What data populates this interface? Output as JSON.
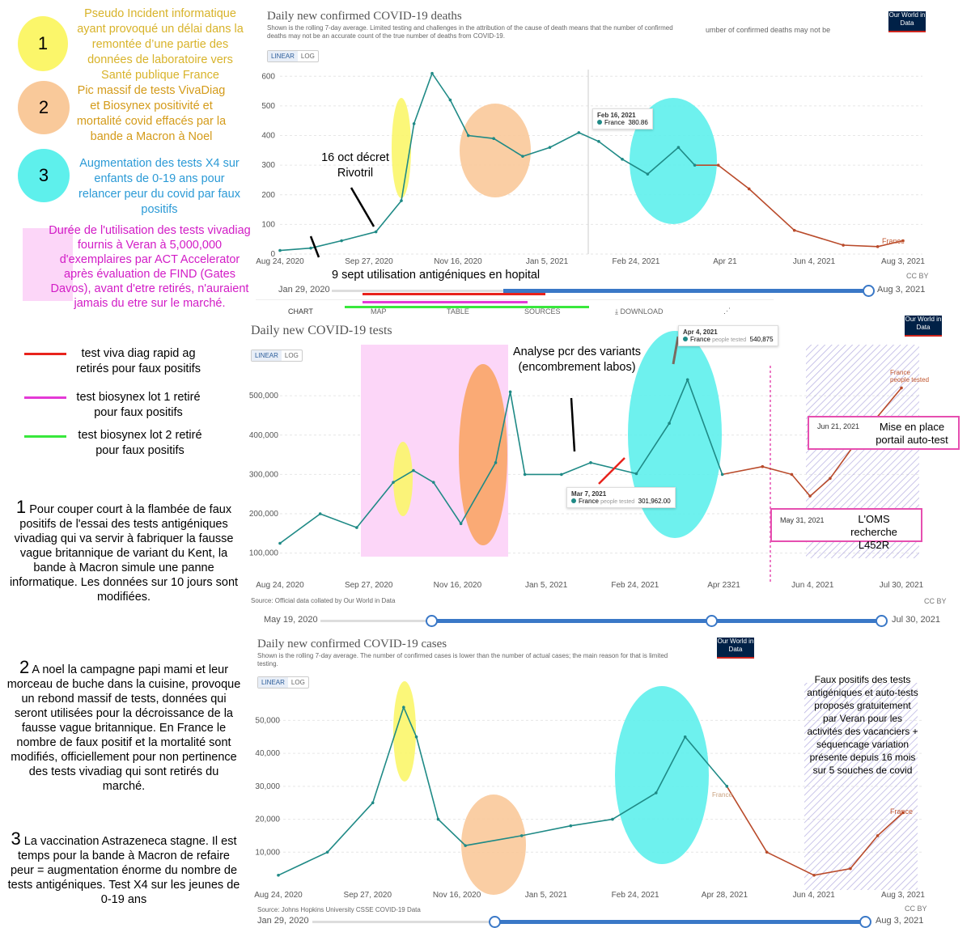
{
  "legend": {
    "items": [
      {
        "num": "1",
        "color": "#fbf66a",
        "text_color": "#d49b1a",
        "text": "Pseudo Incident informatique ayant provoqué un délai dans la remontée d’une partie des données de laboratoire vers Santé publique France"
      },
      {
        "num": "2",
        "color": "#f9c99a",
        "text_color": "#d49b1a",
        "text": "Pic massif de tests VivaDiag et Biosynex positivité et mortalité covid effacés par la bande a Macron à Noel"
      },
      {
        "num": "3",
        "color": "#5ef0ec",
        "text_color": "#2b9ad6",
        "text": "Augmentation des tests X4 sur enfants de 0-19 ans pour relancer peur du covid par faux positifs"
      }
    ],
    "pink_text": "Durée de l'utilisation des tests vivadiag fournis à Veran à 5,000,000 d'exemplaires par ACT Accelerator après évaluation de FIND (Gates Davos), avant d'etre retirés, n'auraient jamais du etre sur le marché.",
    "lines": [
      {
        "color": "#e8231c",
        "text": "test viva diag rapid ag retirés pour faux positifs"
      },
      {
        "color": "#e43ad6",
        "text": "test biosynex lot 1 retiré pour faux positifs"
      },
      {
        "color": "#39e83c",
        "text": "test biosynex lot 2 retiré pour faux positifs"
      }
    ]
  },
  "paragraphs": [
    {
      "num": "1",
      "text": "Pour couper court à la flambée de faux positifs de l'essai des tests antigéniques vivadiag qui va servir à fabriquer la fausse vague britannique de variant du Kent, la bande à Macron simule une panne informatique. Les données sur 10 jours sont modifiées."
    },
    {
      "num": "2",
      "text": "A noel la campagne papi mami et leur morceau de buche dans la cuisine, provoque un rebond massif de tests, données qui seront utilisées pour la décroissance de la fausse vague britannique. En France le nombre de faux positif et la mortalité sont modifiés, officiellement pour non pertinence des tests vivadiag qui sont retirés du marché."
    },
    {
      "num": "3",
      "text": "La vaccination Astrazeneca stagne. Il est temps pour la bande à Macron de refaire peur = augmentation énorme du nombre de tests antigéniques. Test X4 sur les jeunes de 0-19 ans"
    }
  ],
  "logo": "Our World in Data",
  "ui": {
    "linear": "LINEAR",
    "log": "LOG",
    "chart_tab": "CHART",
    "map_tab": "MAP",
    "table_tab": "TABLE",
    "sources_tab": "SOURCES",
    "download": "DOWNLOAD",
    "cc": "CC BY"
  },
  "chart_data": [
    {
      "type": "line",
      "title": "Daily new confirmed COVID-19 deaths",
      "subtitle": "Shown is the rolling 7-day average. Limited testing and challenges in the attribution of the cause of death means that the number of confirmed deaths may not be an accurate count of the true number of deaths from COVID-19.",
      "subtitle_overflow": "umber of confirmed deaths may not be",
      "series": [
        {
          "name": "France",
          "x": [
            "2020-08-24",
            "2020-09-10",
            "2020-09-27",
            "2020-10-16",
            "2020-10-30",
            "2020-11-06",
            "2020-11-16",
            "2020-11-26",
            "2020-12-06",
            "2020-12-20",
            "2021-01-05",
            "2021-01-20",
            "2021-02-05",
            "2021-02-16",
            "2021-03-01",
            "2021-03-15",
            "2021-04-01",
            "2021-04-10",
            "2021-04-23",
            "2021-05-10",
            "2021-06-04",
            "2021-07-01",
            "2021-07-20",
            "2021-08-03"
          ],
          "values": [
            12,
            20,
            45,
            75,
            180,
            440,
            610,
            520,
            400,
            390,
            330,
            360,
            410,
            380,
            320,
            270,
            360,
            300,
            300,
            220,
            80,
            30,
            25,
            45
          ]
        }
      ],
      "xticks": [
        "Aug 24, 2020",
        "Sep 27, 2020",
        "Nov 16, 2020",
        "Jan 5, 2021",
        "Feb 24, 2021",
        "Apr 21",
        "Jun 4, 2021",
        "Aug 3, 2021"
      ],
      "yticks": [
        "0",
        "100",
        "200",
        "300",
        "400",
        "500",
        "600"
      ],
      "ylim": [
        0,
        650
      ],
      "tooltip": {
        "date": "Feb 16, 2021",
        "label": "France",
        "value": "380.86"
      },
      "annotations": [
        "16 oct décret Rivotril",
        "9 sept utilisation antigéniques en hopital"
      ],
      "scrubber": {
        "start": "Jan 29, 2020",
        "end": "Aug 3, 2021"
      }
    },
    {
      "type": "line",
      "title": "Daily new COVID-19 tests",
      "source": "Source: Official data collated by Our World in Data",
      "series": [
        {
          "name": "France",
          "x": [
            "2020-08-24",
            "2020-09-15",
            "2020-10-05",
            "2020-10-25",
            "2020-11-05",
            "2020-11-16",
            "2020-12-01",
            "2020-12-20",
            "2020-12-28",
            "2021-01-05",
            "2021-01-25",
            "2021-02-10",
            "2021-03-07",
            "2021-03-25",
            "2021-04-04",
            "2021-04-23",
            "2021-05-15",
            "2021-05-31",
            "2021-06-10",
            "2021-06-21",
            "2021-07-05",
            "2021-07-30"
          ],
          "values": [
            125000,
            200000,
            165000,
            280000,
            310000,
            280000,
            175000,
            330000,
            510000,
            300000,
            300000,
            330000,
            301962,
            430000,
            540875,
            300000,
            320000,
            300000,
            245000,
            290000,
            380000,
            520000
          ]
        }
      ],
      "xticks": [
        "Aug 24, 2020",
        "Sep 27, 2020",
        "Nov 16, 2020",
        "Jan 5, 2021",
        "Feb 24, 2021",
        "Apr 2321",
        "Jun 4, 2021",
        "Jul 30, 2021"
      ],
      "yticks": [
        "100,000",
        "200,000",
        "300,000",
        "400,000",
        "500,000"
      ],
      "ylim": [
        50000,
        560000
      ],
      "tooltips": [
        {
          "date": "Apr 4, 2021",
          "label": "France",
          "sub": "people tested",
          "value": "540,875"
        },
        {
          "date": "Mar 7, 2021",
          "label": "France",
          "sub": "people tested",
          "value": "301,962.00"
        }
      ],
      "annotations": [
        "Analyse pcr des variants (encombrement labos)",
        "Mise en place portail auto-test",
        "L'OMS recherche L452R"
      ],
      "box_dates": [
        "Jun 21, 2021",
        "May 31, 2021"
      ],
      "end_label": "France",
      "end_sub": "people tested",
      "scrubber": {
        "start": "May 19, 2020",
        "end": "Jul 30, 2021"
      }
    },
    {
      "type": "line",
      "title": "Daily new confirmed COVID-19 cases",
      "subtitle": "Shown is the rolling 7-day average. The number of confirmed cases is lower than the number of actual cases; the main reason for that is limited testing.",
      "source": "Source: Johns Hopkins University CSSE COVID-19 Data",
      "series": [
        {
          "name": "France",
          "x": [
            "2020-08-24",
            "2020-09-20",
            "2020-10-15",
            "2020-11-01",
            "2020-11-08",
            "2020-11-20",
            "2020-12-05",
            "2021-01-05",
            "2021-02-01",
            "2021-02-24",
            "2021-03-20",
            "2021-04-05",
            "2021-04-28",
            "2021-05-20",
            "2021-06-15",
            "2021-07-05",
            "2021-07-20",
            "2021-08-03"
          ],
          "values": [
            3000,
            10000,
            25000,
            54000,
            45000,
            20000,
            12000,
            15000,
            18000,
            20000,
            28000,
            45000,
            30000,
            10000,
            3000,
            5000,
            15000,
            22000
          ]
        }
      ],
      "xticks": [
        "Aug 24, 2020",
        "Sep 27, 2020",
        "Nov 16, 2020",
        "Jan 5, 2021",
        "Feb 24, 2021",
        "Apr 28, 2021",
        "Jun 4, 2021",
        "Aug 3, 2021"
      ],
      "yticks": [
        "10,000",
        "20,000",
        "30,000",
        "40,000",
        "50,000"
      ],
      "ylim": [
        0,
        56000
      ],
      "annotations": [
        "Faux positifs des tests antigéniques et auto-tests proposés gratuitement par Veran pour les activités des vacanciers + séquencage variation présente depuis 16 mois sur 5 souches de covid"
      ],
      "scrubber": {
        "start": "Jan 29, 2020",
        "end": "Aug 3, 2021"
      }
    }
  ]
}
